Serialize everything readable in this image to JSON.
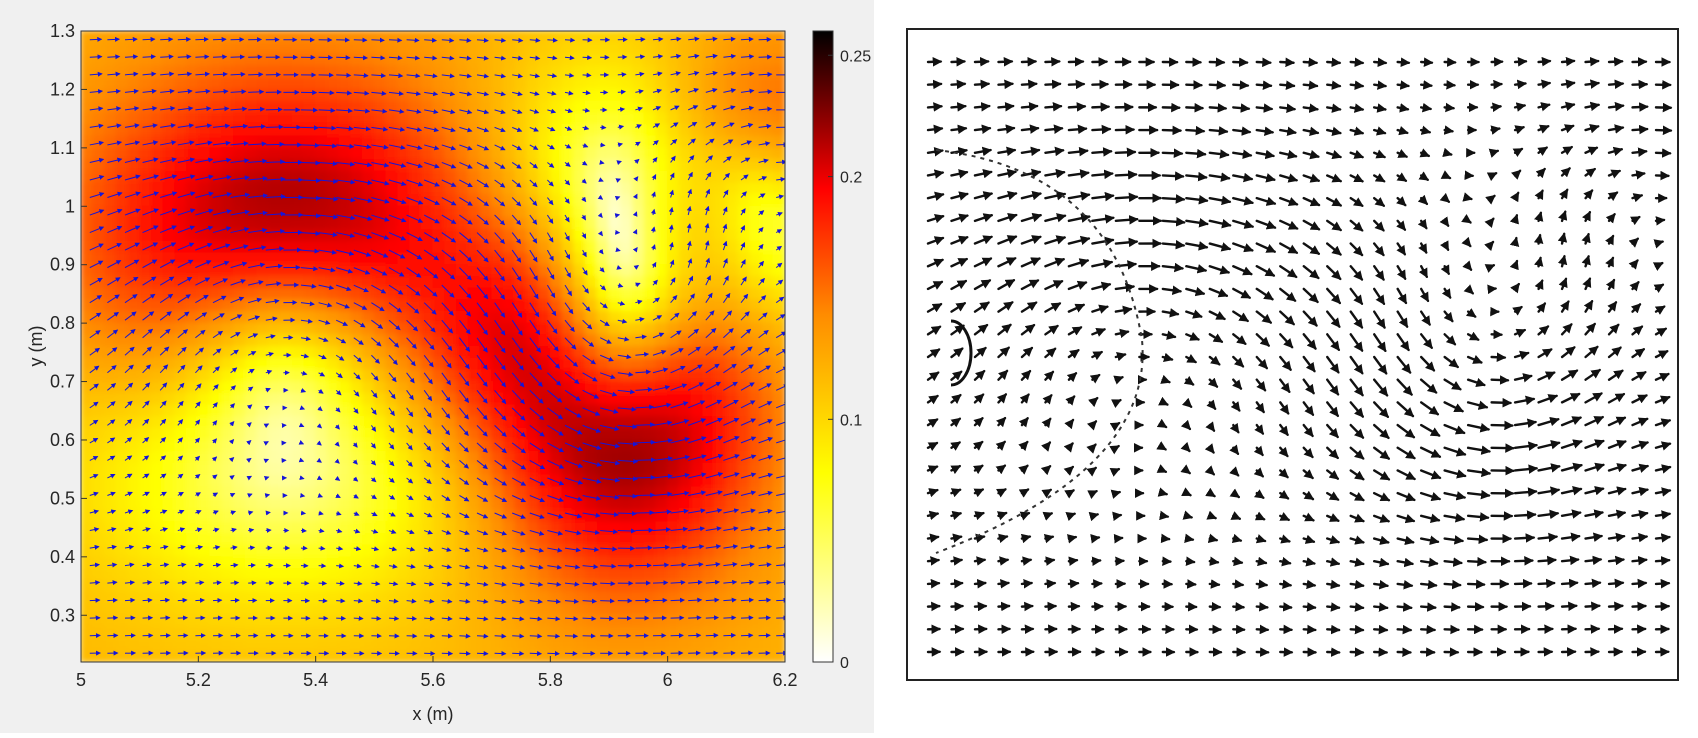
{
  "chart_data": [
    {
      "type": "heatmap",
      "subtype": "vector-field-on-speed-colormap",
      "xlabel": "x (m)",
      "ylabel": "y (m)",
      "xlim": [
        5,
        6.2
      ],
      "ylim": [
        0.22,
        1.3
      ],
      "xticks": [
        5,
        5.2,
        5.4,
        5.6,
        5.8,
        6,
        6.2
      ],
      "xticklabels": [
        "5",
        "5.2",
        "5.4",
        "5.6",
        "5.8",
        "6",
        "6.2"
      ],
      "yticks": [
        0.3,
        0.4,
        0.5,
        0.6,
        0.7,
        0.8,
        0.9,
        1,
        1.1,
        1.2,
        1.3
      ],
      "yticklabels": [
        "0.3",
        "0.4",
        "0.5",
        "0.6",
        "0.7",
        "0.8",
        "0.9",
        "1",
        "1.1",
        "1.2",
        "1.3"
      ],
      "colorbar": {
        "range": [
          0,
          0.26
        ],
        "ticks": [
          0,
          0.1,
          0.2,
          0.25
        ],
        "ticklabels": [
          "0",
          "0.1",
          "0.2",
          "0.25"
        ],
        "colors": [
          "#ffffff",
          "#ffff00",
          "#ff8c00",
          "#ff0000",
          "#000000"
        ]
      },
      "vector_color": "#1515d8",
      "grid": false
    },
    {
      "type": "scatter",
      "subtype": "vector-field-line-art",
      "vector_color": "#111111",
      "grid": false,
      "axes_visible": false
    }
  ]
}
